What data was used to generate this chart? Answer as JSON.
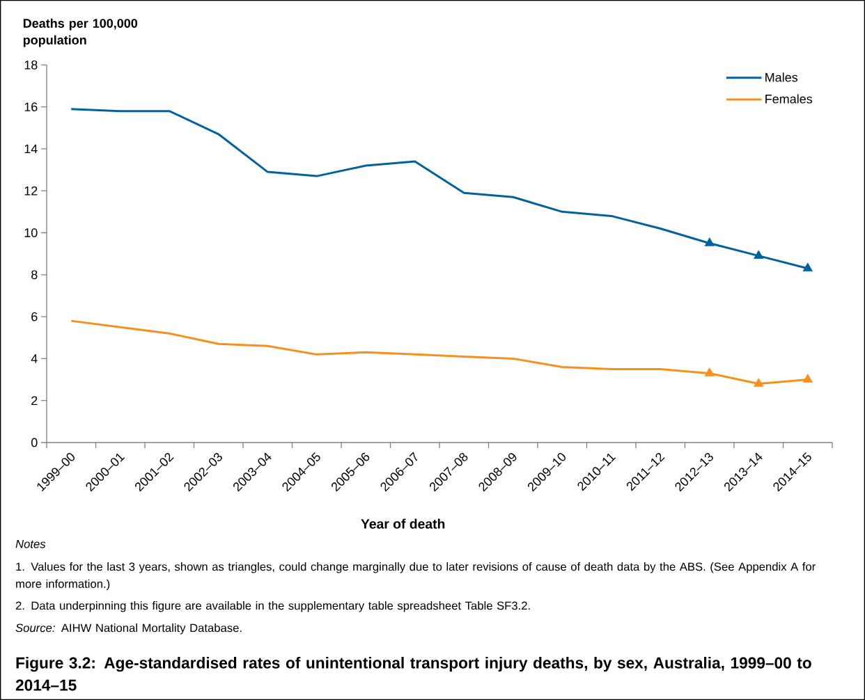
{
  "chart_data": {
    "type": "line",
    "title": "Figure 3.2: Age-standardised rates of unintentional transport injury deaths, by sex, Australia, 1999–00 to 2014–15",
    "xlabel": "Year of death",
    "ylabel": "Deaths per 100,000 population",
    "categories": [
      "1999–00",
      "2000–01",
      "2001–02",
      "2002–03",
      "2003–04",
      "2004–05",
      "2005–06",
      "2006–07",
      "2007–08",
      "2008–09",
      "2009–10",
      "2010–11",
      "2011–12",
      "2012–13",
      "2013–14",
      "2014–15"
    ],
    "series": [
      {
        "name": "Males",
        "color": "#00629b",
        "values": [
          15.9,
          15.8,
          15.8,
          14.7,
          12.9,
          12.7,
          13.2,
          13.4,
          11.9,
          11.7,
          11.0,
          10.8,
          10.2,
          9.5,
          8.9,
          8.3
        ]
      },
      {
        "name": "Females",
        "color": "#f7901e",
        "values": [
          5.8,
          5.5,
          5.2,
          4.7,
          4.6,
          4.2,
          4.3,
          4.2,
          4.1,
          4.0,
          3.6,
          3.5,
          3.5,
          3.3,
          2.8,
          3.0
        ]
      },
      {
        "type": "scatter",
        "marker": "triangle",
        "color": "#00629b",
        "values": [
          null,
          null,
          null,
          null,
          null,
          null,
          null,
          null,
          null,
          null,
          null,
          null,
          null,
          9.5,
          8.9,
          8.3
        ]
      },
      {
        "type": "scatter",
        "marker": "triangle",
        "color": "#f7901e",
        "values": [
          null,
          null,
          null,
          null,
          null,
          null,
          null,
          null,
          null,
          null,
          null,
          null,
          null,
          3.3,
          2.8,
          3.0
        ]
      }
    ],
    "ylim": [
      0,
      18
    ],
    "yticks": [
      0,
      2,
      4,
      6,
      8,
      10,
      12,
      14,
      16,
      18
    ],
    "grid": false,
    "legend": "top right",
    "annotations": [
      "*Notes*",
      "1. Values for the last 3 years, shown as triangles, could change marginally due to later revisions of cause of death data by the ABS. (See Appendix A for more information.)",
      "2. Data underpinning this figure are available in the supplementary table spreadsheet Table SF3.2.",
      "*Source:* AIHW National Mortality Database."
    ]
  }
}
